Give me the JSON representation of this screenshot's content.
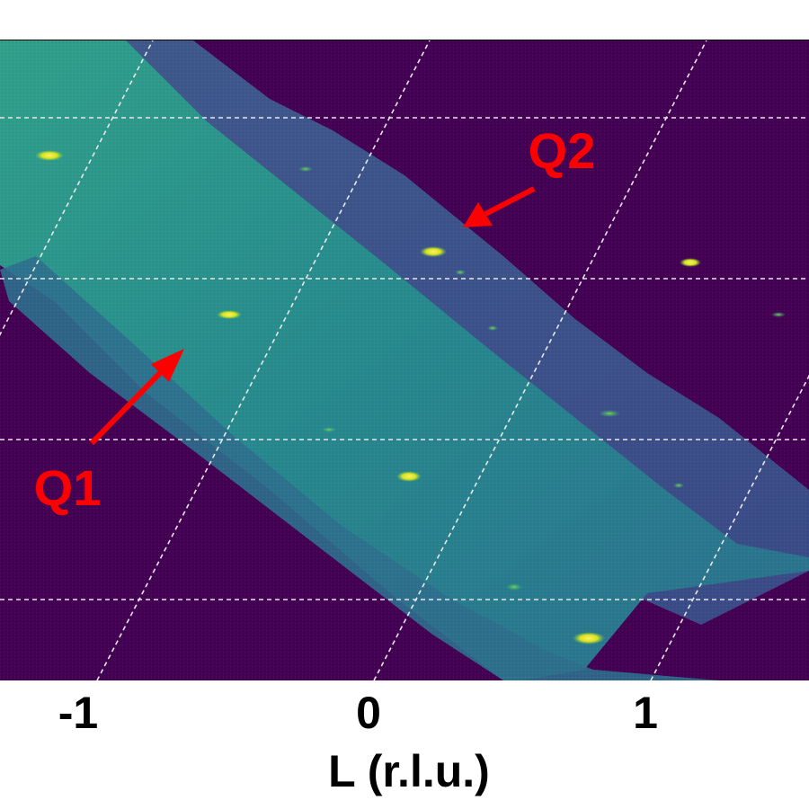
{
  "chart_data": {
    "type": "heatmap",
    "xlabel": "L (r.l.u.)",
    "xticks": [
      {
        "value": -1,
        "label": "-1"
      },
      {
        "value": 0,
        "label": "0"
      },
      {
        "value": 1,
        "label": "1"
      }
    ],
    "xlim": [
      -1.35,
      1.55
    ],
    "grid": true,
    "colormap": "viridis",
    "colors": {
      "background": "#440154",
      "band_q1": "#2a8a8e",
      "band_q2": "#3b4f8a",
      "peak": "#fde725",
      "annotation": "#ff0000",
      "grid": "#e8e8e8"
    },
    "annotations": [
      {
        "label": "Q1",
        "points_to": "broad-band",
        "arrow_color": "#ff0000"
      },
      {
        "label": "Q2",
        "points_to": "narrow-band",
        "arrow_color": "#ff0000"
      }
    ]
  }
}
